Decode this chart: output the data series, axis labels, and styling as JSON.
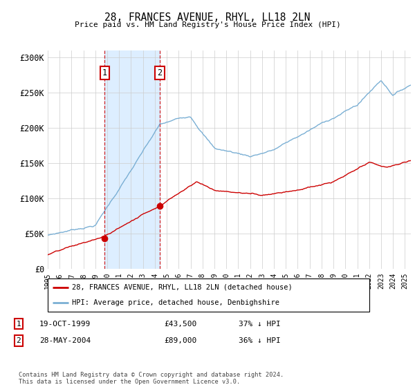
{
  "title": "28, FRANCES AVENUE, RHYL, LL18 2LN",
  "subtitle": "Price paid vs. HM Land Registry's House Price Index (HPI)",
  "ylabel_ticks": [
    "£0",
    "£50K",
    "£100K",
    "£150K",
    "£200K",
    "£250K",
    "£300K"
  ],
  "ytick_values": [
    0,
    50000,
    100000,
    150000,
    200000,
    250000,
    300000
  ],
  "ylim": [
    0,
    310000
  ],
  "xlim_start": 1995.0,
  "xlim_end": 2025.5,
  "purchase1_x": 1999.79,
  "purchase1_y": 43500,
  "purchase1_label": "19-OCT-1999",
  "purchase1_price": "£43,500",
  "purchase1_note": "37% ↓ HPI",
  "purchase2_x": 2004.41,
  "purchase2_y": 89000,
  "purchase2_label": "28-MAY-2004",
  "purchase2_price": "£89,000",
  "purchase2_note": "36% ↓ HPI",
  "red_line_color": "#cc0000",
  "blue_line_color": "#7aafd4",
  "shade_color": "#ddeeff",
  "grid_color": "#cccccc",
  "background_color": "#ffffff",
  "footnote": "Contains HM Land Registry data © Crown copyright and database right 2024.\nThis data is licensed under the Open Government Licence v3.0.",
  "legend_entry1": "28, FRANCES AVENUE, RHYL, LL18 2LN (detached house)",
  "legend_entry2": "HPI: Average price, detached house, Denbighshire",
  "purchase_box_color": "#cc0000"
}
